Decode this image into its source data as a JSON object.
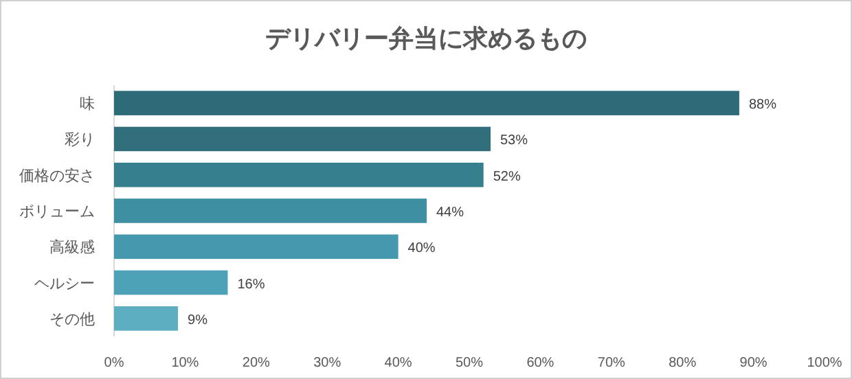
{
  "chart_data": {
    "type": "bar",
    "orientation": "horizontal",
    "title": "デリバリー弁当に求めるもの",
    "categories": [
      "味",
      "彩り",
      "価格の安さ",
      "ボリューム",
      "高級感",
      "ヘルシー",
      "その他"
    ],
    "values": [
      88,
      53,
      52,
      44,
      40,
      16,
      9
    ],
    "colors": [
      "#2e6b78",
      "#316f7d",
      "#367f8e",
      "#3f8fa2",
      "#4598ad",
      "#4da2b8",
      "#5eaec1"
    ],
    "value_labels": [
      "88%",
      "53%",
      "52%",
      "44%",
      "40%",
      "16%",
      "9%"
    ],
    "xlim": [
      0,
      100
    ],
    "xticks": [
      {
        "value": 0,
        "label": "0%"
      },
      {
        "value": 10,
        "label": "10%"
      },
      {
        "value": 20,
        "label": "20%"
      },
      {
        "value": 30,
        "label": "30%"
      },
      {
        "value": 40,
        "label": "40%"
      },
      {
        "value": 50,
        "label": "50%"
      },
      {
        "value": 60,
        "label": "60%"
      },
      {
        "value": 70,
        "label": "70%"
      },
      {
        "value": 80,
        "label": "80%"
      },
      {
        "value": 90,
        "label": "90%"
      },
      {
        "value": 100,
        "label": "100%"
      }
    ],
    "grid": false
  }
}
